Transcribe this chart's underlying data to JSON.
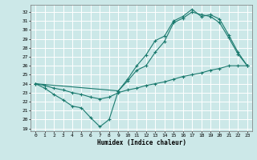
{
  "xlabel": "Humidex (Indice chaleur)",
  "background_color": "#cce8e8",
  "grid_color": "#ffffff",
  "line_color": "#1a7a6e",
  "xlim": [
    -0.5,
    23.5
  ],
  "ylim": [
    18.7,
    32.8
  ],
  "yticks": [
    19,
    20,
    21,
    22,
    23,
    24,
    25,
    26,
    27,
    28,
    29,
    30,
    31,
    32
  ],
  "xticks": [
    0,
    1,
    2,
    3,
    4,
    5,
    6,
    7,
    8,
    9,
    10,
    11,
    12,
    13,
    14,
    15,
    16,
    17,
    18,
    19,
    20,
    21,
    22,
    23
  ],
  "line1_x": [
    0,
    1,
    2,
    3,
    4,
    5,
    6,
    7,
    8,
    9,
    10,
    11,
    12,
    13,
    14,
    15,
    16,
    17,
    18,
    19,
    20,
    21,
    22,
    23
  ],
  "line1_y": [
    24.0,
    23.8,
    23.5,
    23.3,
    23.0,
    22.8,
    22.5,
    22.3,
    22.5,
    23.0,
    23.3,
    23.5,
    23.8,
    24.0,
    24.2,
    24.5,
    24.8,
    25.0,
    25.2,
    25.5,
    25.7,
    26.0,
    26.0,
    26.0
  ],
  "line2_x": [
    0,
    1,
    2,
    3,
    4,
    5,
    6,
    7,
    8,
    9,
    10,
    11,
    12,
    13,
    14,
    15,
    16,
    17,
    18,
    19,
    20,
    21,
    22,
    23
  ],
  "line2_y": [
    24.0,
    23.5,
    22.8,
    22.2,
    21.5,
    21.3,
    20.2,
    19.2,
    20.0,
    23.2,
    24.3,
    25.5,
    26.0,
    27.5,
    28.7,
    30.8,
    31.3,
    32.0,
    31.7,
    31.5,
    30.8,
    29.1,
    27.3,
    26.0
  ],
  "line3_x": [
    0,
    9,
    10,
    11,
    12,
    13,
    14,
    15,
    16,
    17,
    18,
    19,
    20,
    21,
    22,
    23
  ],
  "line3_y": [
    24.0,
    23.2,
    24.5,
    26.0,
    27.2,
    28.8,
    29.3,
    31.0,
    31.5,
    32.3,
    31.5,
    31.7,
    31.2,
    29.4,
    27.5,
    26.0
  ]
}
